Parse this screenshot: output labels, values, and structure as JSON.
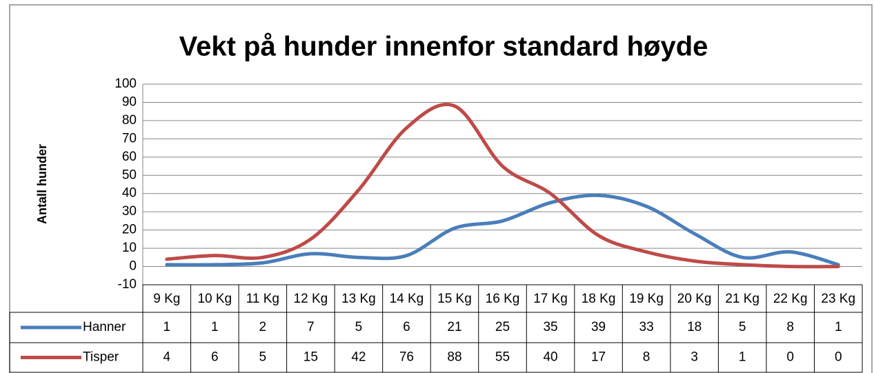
{
  "chart_data": {
    "type": "line",
    "title": "Vekt på hunder innenfor standard høyde",
    "y_label": "Antall hunder",
    "categories": [
      "9 Kg",
      "10 Kg",
      "11 Kg",
      "12 Kg",
      "13 Kg",
      "14 Kg",
      "15 Kg",
      "16 Kg",
      "17 Kg",
      "18 Kg",
      "19 Kg",
      "20 Kg",
      "21 Kg",
      "22 Kg",
      "23 Kg"
    ],
    "series": [
      {
        "name": "Hanner",
        "color": "#4a7ebb",
        "values": [
          1,
          1,
          2,
          7,
          5,
          6,
          21,
          25,
          35,
          39,
          33,
          18,
          5,
          8,
          1
        ]
      },
      {
        "name": "Tisper",
        "color": "#be4b48",
        "values": [
          4,
          6,
          5,
          15,
          42,
          76,
          88,
          55,
          40,
          17,
          8,
          3,
          1,
          0,
          0
        ]
      }
    ],
    "ylim": [
      -10,
      100
    ],
    "yticks": [
      -10,
      0,
      10,
      20,
      30,
      40,
      50,
      60,
      70,
      80,
      90,
      100
    ],
    "grid": true,
    "smooth": true,
    "data_table": true
  }
}
